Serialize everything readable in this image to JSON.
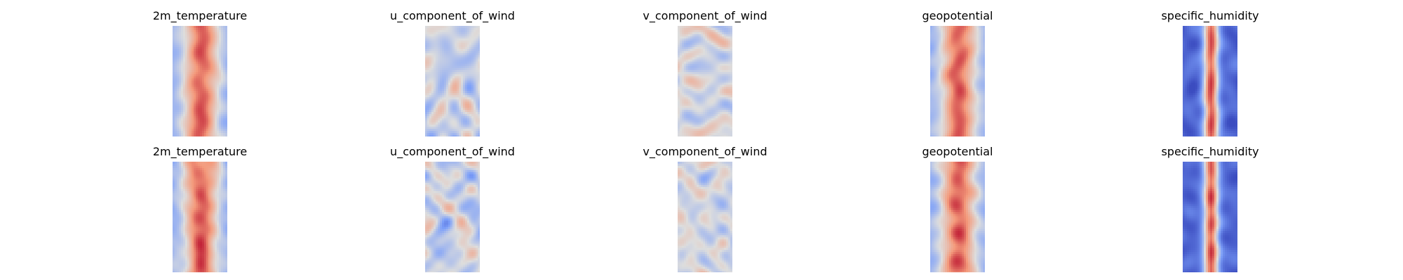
{
  "chart_data": {
    "type": "heatmap",
    "colormap": "coolwarm",
    "rows": 2,
    "columns": 5,
    "axes_visible": false,
    "panels": [
      {
        "row": 0,
        "col": 0,
        "title": "2m_temperature",
        "pattern": "warm-band"
      },
      {
        "row": 0,
        "col": 1,
        "title": "u_component_of_wind",
        "pattern": "streaks"
      },
      {
        "row": 0,
        "col": 2,
        "title": "v_component_of_wind",
        "pattern": "speckle"
      },
      {
        "row": 0,
        "col": 3,
        "title": "geopotential",
        "pattern": "warm-band"
      },
      {
        "row": 0,
        "col": 4,
        "title": "specific_humidity",
        "pattern": "narrow-core"
      },
      {
        "row": 1,
        "col": 0,
        "title": "2m_temperature",
        "pattern": "warm-band"
      },
      {
        "row": 1,
        "col": 1,
        "title": "u_component_of_wind",
        "pattern": "streaks"
      },
      {
        "row": 1,
        "col": 2,
        "title": "v_component_of_wind",
        "pattern": "speckle"
      },
      {
        "row": 1,
        "col": 3,
        "title": "geopotential",
        "pattern": "warm-band"
      },
      {
        "row": 1,
        "col": 4,
        "title": "specific_humidity",
        "pattern": "narrow-core"
      }
    ]
  }
}
